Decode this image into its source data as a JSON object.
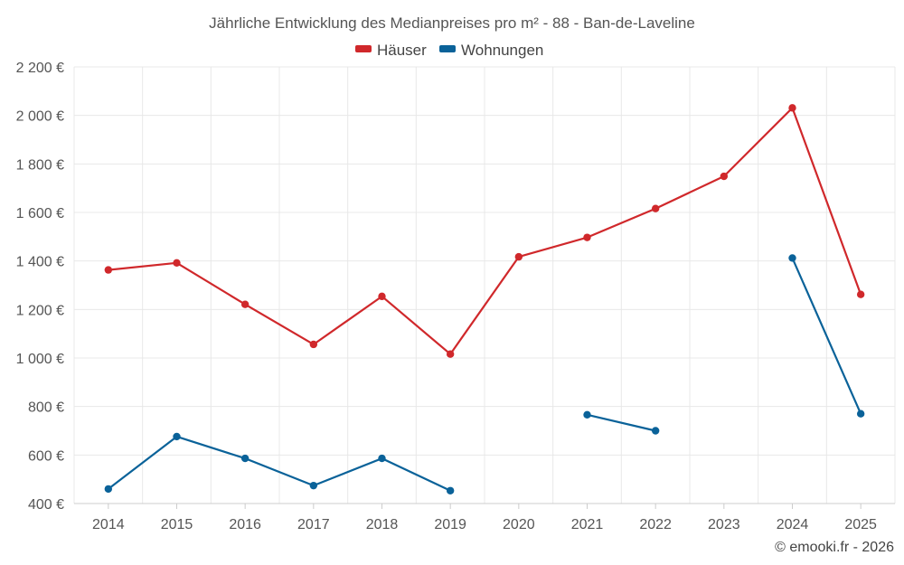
{
  "chart_data": {
    "type": "line",
    "title": "Jährliche Entwicklung des Medianpreises pro m² - 88 - Ban-de-Laveline",
    "categories": [
      "2014",
      "2015",
      "2016",
      "2017",
      "2018",
      "2019",
      "2020",
      "2021",
      "2022",
      "2023",
      "2024",
      "2025"
    ],
    "series": [
      {
        "name": "Häuser",
        "color": "#d0282b",
        "values": [
          1363,
          1392,
          1221,
          1056,
          1254,
          1016,
          1417,
          1497,
          1616,
          1749,
          2031,
          1262
        ]
      },
      {
        "name": "Wohnungen",
        "color": "#0a6299",
        "values": [
          460,
          676,
          586,
          474,
          586,
          453,
          null,
          766,
          700,
          null,
          1412,
          770
        ]
      }
    ],
    "ylim": [
      400,
      2200
    ],
    "yticks": [
      400,
      600,
      800,
      1000,
      1200,
      1400,
      1600,
      1800,
      2000,
      2200
    ],
    "ytick_labels": [
      "400 €",
      "600 €",
      "800 €",
      "1 000 €",
      "1 200 €",
      "1 400 €",
      "1 600 €",
      "1 800 €",
      "2 000 €",
      "2 200 €"
    ],
    "xlabel": "",
    "ylabel": "",
    "legend_position": "top-center",
    "grid": true
  },
  "footer": "© emooki.fr - 2026"
}
